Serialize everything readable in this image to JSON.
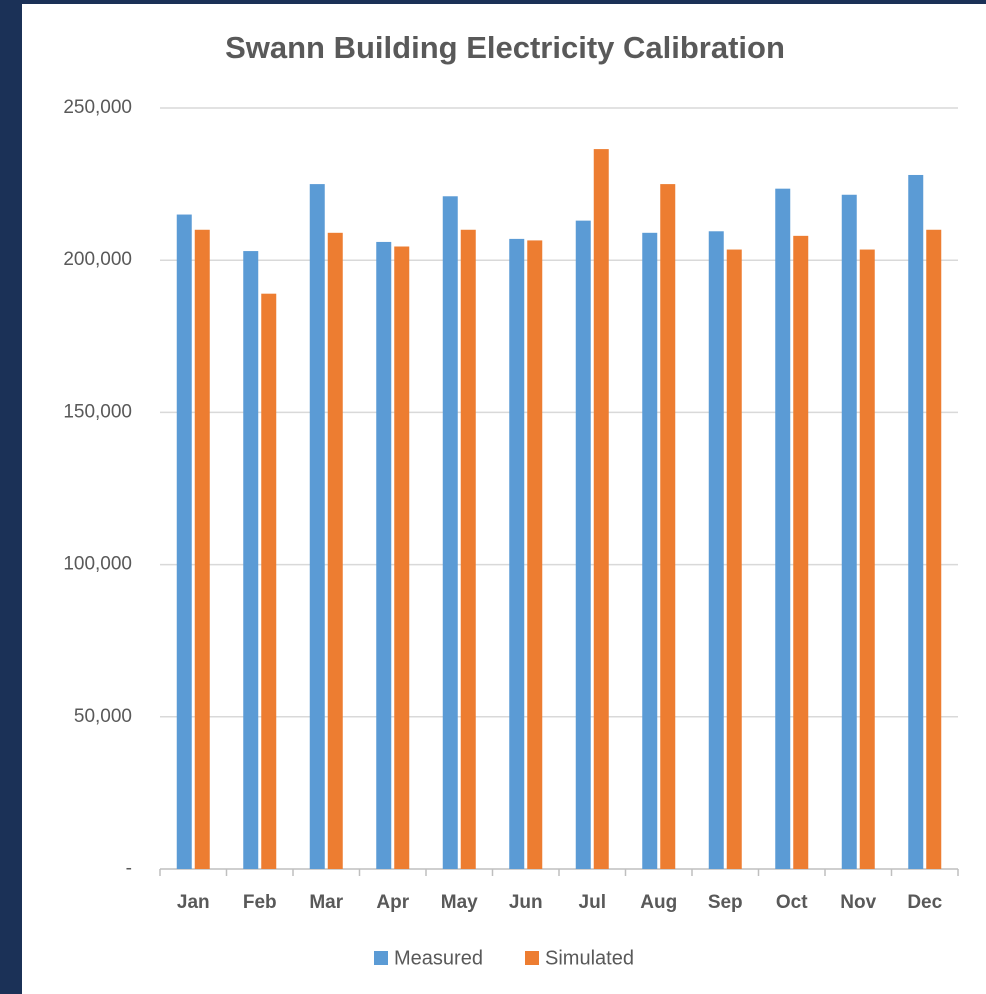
{
  "chart_data": {
    "type": "bar",
    "title": "Swann Building Electricity Calibration",
    "categories": [
      "Jan",
      "Feb",
      "Mar",
      "Apr",
      "May",
      "Jun",
      "Jul",
      "Aug",
      "Sep",
      "Oct",
      "Nov",
      "Dec"
    ],
    "series": [
      {
        "name": "Measured",
        "color": "#5b9bd5",
        "values": [
          215000,
          203000,
          225000,
          206000,
          221000,
          207000,
          213000,
          209000,
          209500,
          223500,
          221500,
          228000
        ]
      },
      {
        "name": "Simulated",
        "color": "#ed7d31",
        "values": [
          210000,
          189000,
          209000,
          204500,
          210000,
          206500,
          236500,
          225000,
          203500,
          208000,
          203500,
          210000
        ]
      }
    ],
    "ylim": [
      0,
      250000
    ],
    "yticks": [
      {
        "value": 0,
        "label": "-"
      },
      {
        "value": 50000,
        "label": "50,000"
      },
      {
        "value": 100000,
        "label": "100,000"
      },
      {
        "value": 150000,
        "label": "150,000"
      },
      {
        "value": 200000,
        "label": "200,000"
      },
      {
        "value": 250000,
        "label": "250,000"
      }
    ],
    "grid": true,
    "legend": "bottom"
  }
}
